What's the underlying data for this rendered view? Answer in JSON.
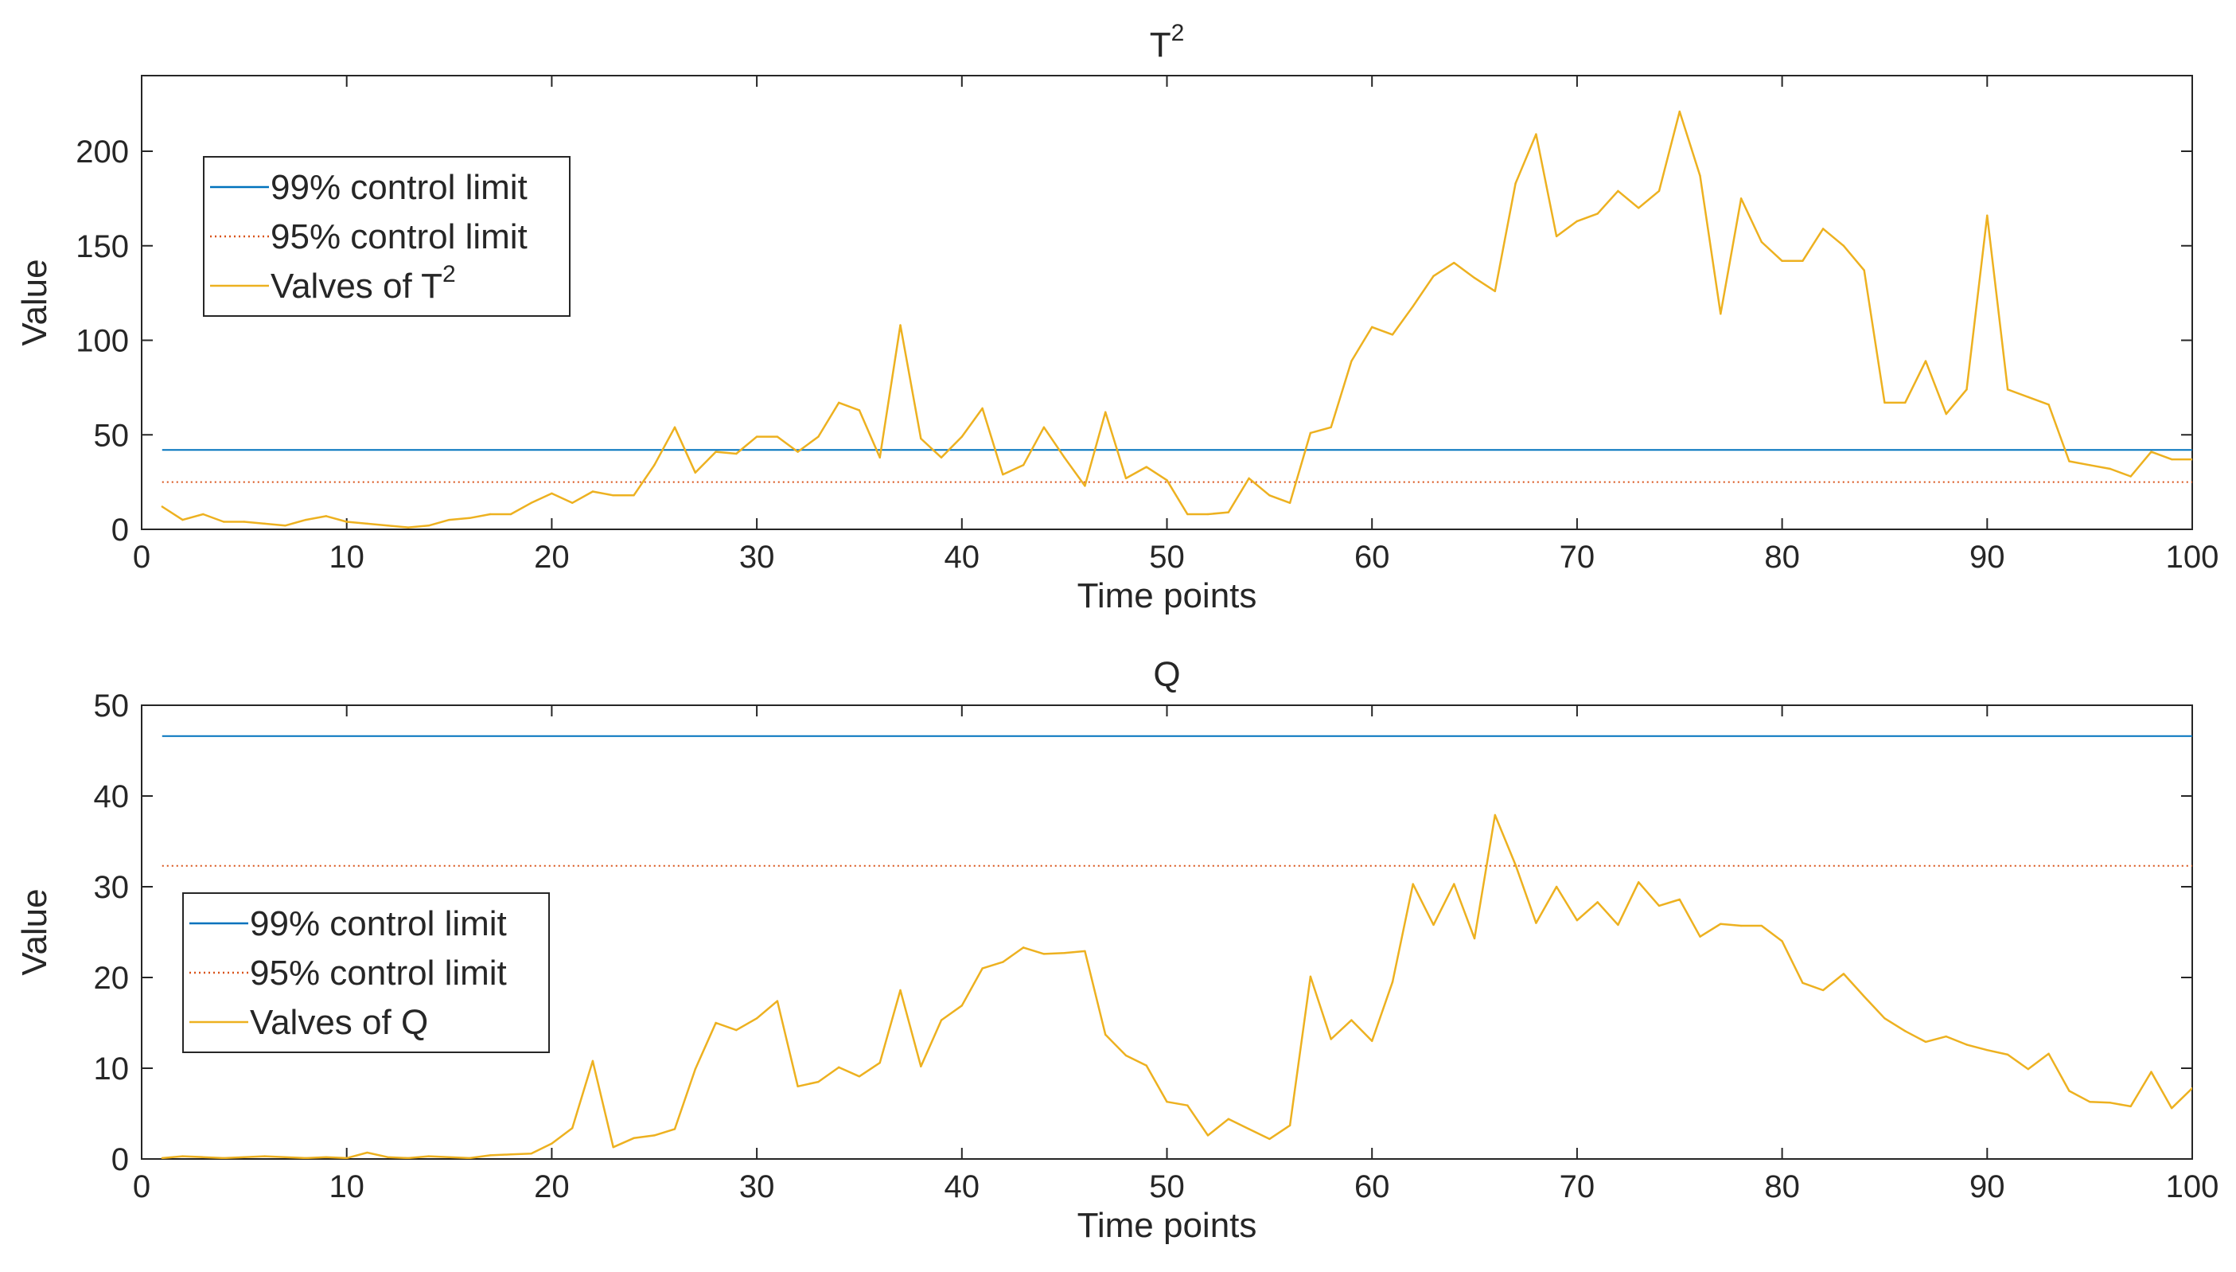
{
  "colors": {
    "limit99": "#0072BD",
    "limit95": "#D95319",
    "series": "#EDB120",
    "axis": "#262626",
    "background": "#ffffff"
  },
  "chart_data": [
    {
      "type": "line",
      "title": "T",
      "title_superscript": "2",
      "xlabel": "Time points",
      "ylabel": "Value",
      "xlim": [
        0,
        100
      ],
      "ylim": [
        0,
        240
      ],
      "xticks": [
        0,
        10,
        20,
        30,
        40,
        50,
        60,
        70,
        80,
        90,
        100
      ],
      "yticks": [
        0,
        50,
        100,
        150,
        200
      ],
      "legend": {
        "position": "top-left",
        "entries": [
          {
            "label": "99% control limit",
            "sup": "",
            "style": "solid",
            "color_key": "limit99"
          },
          {
            "label": "95% control limit",
            "sup": "",
            "style": "dotted",
            "color_key": "limit95"
          },
          {
            "label": "Valves of T",
            "sup": "2",
            "style": "solid",
            "color_key": "series"
          }
        ]
      },
      "limits": [
        {
          "name": "99% control limit",
          "value": 42,
          "style": "solid",
          "color_key": "limit99"
        },
        {
          "name": "95% control limit",
          "value": 25,
          "style": "dotted",
          "color_key": "limit95"
        }
      ],
      "series": [
        {
          "name": "Valves of T2",
          "color_key": "series",
          "x": [
            1,
            2,
            3,
            4,
            5,
            6,
            7,
            8,
            9,
            10,
            11,
            12,
            13,
            14,
            15,
            16,
            17,
            18,
            19,
            20,
            21,
            22,
            23,
            24,
            25,
            26,
            27,
            28,
            29,
            30,
            31,
            32,
            33,
            34,
            35,
            36,
            37,
            38,
            39,
            40,
            41,
            42,
            43,
            44,
            45,
            46,
            47,
            48,
            49,
            50,
            51,
            52,
            53,
            54,
            55,
            56,
            57,
            58,
            59,
            60,
            61,
            62,
            63,
            64,
            65,
            66,
            67,
            68,
            69,
            70,
            71,
            72,
            73,
            74,
            75,
            76,
            77,
            78,
            79,
            80,
            81,
            82,
            83,
            84,
            85,
            86,
            87,
            88,
            89,
            90,
            91,
            92,
            93,
            94,
            95,
            96,
            97,
            98,
            99,
            100
          ],
          "values": [
            12,
            5,
            8,
            4,
            4,
            3,
            2,
            5,
            7,
            4,
            3,
            2,
            1,
            2,
            5,
            6,
            8,
            8,
            14,
            19,
            14,
            20,
            18,
            18,
            34,
            54,
            30,
            41,
            40,
            49,
            49,
            41,
            49,
            67,
            63,
            38,
            108,
            48,
            38,
            49,
            64,
            29,
            34,
            54,
            38,
            23,
            62,
            27,
            33,
            26,
            8,
            8,
            9,
            27,
            18,
            14,
            51,
            54,
            89,
            107,
            103,
            118,
            134,
            141,
            133,
            126,
            183,
            209,
            155,
            163,
            167,
            179,
            170,
            179,
            221,
            187,
            114,
            175,
            152,
            142,
            142,
            159,
            150,
            137,
            67,
            67,
            89,
            61,
            74,
            166,
            74,
            70,
            66,
            36,
            34,
            32,
            28,
            41,
            37,
            37
          ]
        }
      ]
    },
    {
      "type": "line",
      "title": "Q",
      "title_superscript": "",
      "xlabel": "Time points",
      "ylabel": "Value",
      "xlim": [
        0,
        100
      ],
      "ylim": [
        0,
        50
      ],
      "xticks": [
        0,
        10,
        20,
        30,
        40,
        50,
        60,
        70,
        80,
        90,
        100
      ],
      "yticks": [
        0,
        10,
        20,
        30,
        40,
        50
      ],
      "legend": {
        "position": "center-left",
        "entries": [
          {
            "label": "99% control limit",
            "sup": "",
            "style": "solid",
            "color_key": "limit99"
          },
          {
            "label": "95% control limit",
            "sup": "",
            "style": "dotted",
            "color_key": "limit95"
          },
          {
            "label": "Valves of Q",
            "sup": "",
            "style": "solid",
            "color_key": "series"
          }
        ]
      },
      "limits": [
        {
          "name": "99% control limit",
          "value": 46.6,
          "style": "solid",
          "color_key": "limit99"
        },
        {
          "name": "95% control limit",
          "value": 32.3,
          "style": "dotted",
          "color_key": "limit95"
        }
      ],
      "series": [
        {
          "name": "Valves of Q",
          "color_key": "series",
          "x": [
            1,
            2,
            3,
            4,
            5,
            6,
            7,
            8,
            9,
            10,
            11,
            12,
            13,
            14,
            15,
            16,
            17,
            18,
            19,
            20,
            21,
            22,
            23,
            24,
            25,
            26,
            27,
            28,
            29,
            30,
            31,
            32,
            33,
            34,
            35,
            36,
            37,
            38,
            39,
            40,
            41,
            42,
            43,
            44,
            45,
            46,
            47,
            48,
            49,
            50,
            51,
            52,
            53,
            54,
            55,
            56,
            57,
            58,
            59,
            60,
            61,
            62,
            63,
            64,
            65,
            66,
            67,
            68,
            69,
            70,
            71,
            72,
            73,
            74,
            75,
            76,
            77,
            78,
            79,
            80,
            81,
            82,
            83,
            84,
            85,
            86,
            87,
            88,
            89,
            90,
            91,
            92,
            93,
            94,
            95,
            96,
            97,
            98,
            99,
            100
          ],
          "values": [
            0.1,
            0.3,
            0.2,
            0.1,
            0.2,
            0.3,
            0.2,
            0.1,
            0.2,
            0.1,
            0.7,
            0.2,
            0.1,
            0.3,
            0.2,
            0.1,
            0.4,
            0.5,
            0.6,
            1.7,
            3.4,
            10.8,
            1.3,
            2.3,
            2.6,
            3.3,
            9.9,
            15.0,
            14.2,
            15.5,
            17.4,
            8.0,
            8.5,
            10.1,
            9.1,
            10.6,
            18.6,
            10.2,
            15.3,
            16.9,
            21.0,
            21.7,
            23.3,
            22.6,
            22.7,
            22.9,
            13.7,
            11.4,
            10.3,
            6.3,
            5.9,
            2.6,
            4.4,
            3.3,
            2.2,
            3.7,
            20.1,
            13.2,
            15.3,
            13.0,
            19.5,
            30.3,
            25.8,
            30.3,
            24.3,
            37.9,
            32.4,
            26.0,
            30.0,
            26.3,
            28.3,
            25.8,
            30.5,
            27.9,
            28.6,
            24.5,
            25.9,
            25.7,
            25.7,
            24.0,
            19.4,
            18.6,
            20.4,
            17.9,
            15.5,
            14.1,
            12.9,
            13.5,
            12.6,
            12.0,
            11.5,
            9.9,
            11.6,
            7.5,
            6.3,
            6.2,
            5.8,
            9.6,
            5.6,
            7.8
          ]
        }
      ]
    }
  ]
}
